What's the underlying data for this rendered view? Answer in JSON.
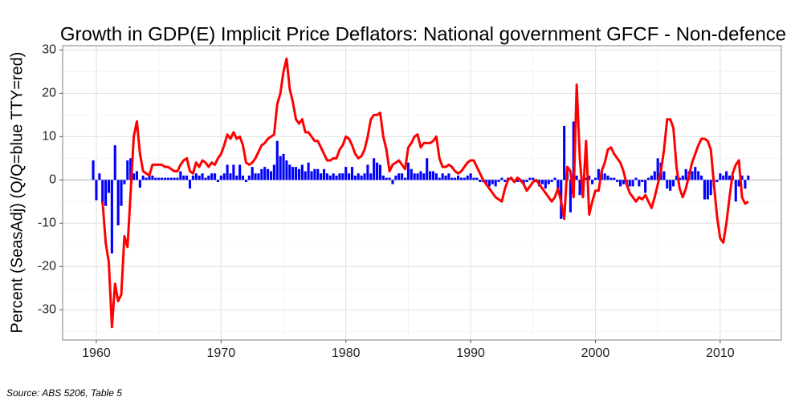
{
  "chart_data": {
    "type": "bar+line",
    "title": "Growth in GDP(E) Implicit Price Deflators: National government GFCF - Non-defence",
    "ylabel": "Percent (SeasAdj) (Q/Q=blue TTY=red)",
    "source": "Source: ABS 5206, Table 5",
    "xlim": [
      1957.3,
      2014.9
    ],
    "ylim": [
      -37,
      31
    ],
    "xticks": [
      1960,
      1970,
      1980,
      1990,
      2000,
      2010
    ],
    "yticks": [
      -30,
      -20,
      -10,
      0,
      10,
      20,
      30
    ],
    "xminorticks": [
      1965,
      1975,
      1985,
      1995,
      2005
    ],
    "yminorticks": [
      -35,
      -25,
      -15,
      -5,
      5,
      15,
      25
    ],
    "grid": true,
    "x": [
      1959.75,
      1960,
      1960.25,
      1960.5,
      1960.75,
      1961,
      1961.25,
      1961.5,
      1961.75,
      1962,
      1962.25,
      1962.5,
      1962.75,
      1963,
      1963.25,
      1963.5,
      1963.75,
      1964,
      1964.25,
      1964.5,
      1964.75,
      1965,
      1965.25,
      1965.5,
      1965.75,
      1966,
      1966.25,
      1966.5,
      1966.75,
      1967,
      1967.25,
      1967.5,
      1967.75,
      1968,
      1968.25,
      1968.5,
      1968.75,
      1969,
      1969.25,
      1969.5,
      1969.75,
      1970,
      1970.25,
      1970.5,
      1970.75,
      1971,
      1971.25,
      1971.5,
      1971.75,
      1972,
      1972.25,
      1972.5,
      1972.75,
      1973,
      1973.25,
      1973.5,
      1973.75,
      1974,
      1974.25,
      1974.5,
      1974.75,
      1975,
      1975.25,
      1975.5,
      1975.75,
      1976,
      1976.25,
      1976.5,
      1976.75,
      1977,
      1977.25,
      1977.5,
      1977.75,
      1978,
      1978.25,
      1978.5,
      1978.75,
      1979,
      1979.25,
      1979.5,
      1979.75,
      1980,
      1980.25,
      1980.5,
      1980.75,
      1981,
      1981.25,
      1981.5,
      1981.75,
      1982,
      1982.25,
      1982.5,
      1982.75,
      1983,
      1983.25,
      1983.5,
      1983.75,
      1984,
      1984.25,
      1984.5,
      1984.75,
      1985,
      1985.25,
      1985.5,
      1985.75,
      1986,
      1986.25,
      1986.5,
      1986.75,
      1987,
      1987.25,
      1987.5,
      1987.75,
      1988,
      1988.25,
      1988.5,
      1988.75,
      1989,
      1989.25,
      1989.5,
      1989.75,
      1990,
      1990.25,
      1990.5,
      1990.75,
      1991,
      1991.25,
      1991.5,
      1991.75,
      1992,
      1992.25,
      1992.5,
      1992.75,
      1993,
      1993.25,
      1993.5,
      1993.75,
      1994,
      1994.25,
      1994.5,
      1994.75,
      1995,
      1995.25,
      1995.5,
      1995.75,
      1996,
      1996.25,
      1996.5,
      1996.75,
      1997,
      1997.25,
      1997.5,
      1997.75,
      1998,
      1998.25,
      1998.5,
      1998.75,
      1999,
      1999.25,
      1999.5,
      1999.75,
      2000,
      2000.25,
      2000.5,
      2000.75,
      2001,
      2001.25,
      2001.5,
      2001.75,
      2002,
      2002.25,
      2002.5,
      2002.75,
      2003,
      2003.25,
      2003.5,
      2003.75,
      2004,
      2004.25,
      2004.5,
      2004.75,
      2005,
      2005.25,
      2005.5,
      2005.75,
      2006,
      2006.25,
      2006.5,
      2006.75,
      2007,
      2007.25,
      2007.5,
      2007.75,
      2008,
      2008.25,
      2008.5,
      2008.75,
      2009,
      2009.25,
      2009.5,
      2009.75,
      2010,
      2010.25,
      2010.5,
      2010.75,
      2011,
      2011.25,
      2011.5,
      2011.75,
      2012,
      2012.25
    ],
    "series": [
      {
        "type": "bar",
        "color": "#0000ff",
        "values": [
          4.5,
          -4.7,
          1.5,
          -5.5,
          -6,
          -3,
          -17,
          8,
          -10.5,
          -6,
          -1,
          4.5,
          5,
          1.5,
          2,
          -1.8,
          1,
          0.5,
          1,
          1,
          0.5,
          0.5,
          0.5,
          0.5,
          0.5,
          0.5,
          0.5,
          0.5,
          2,
          1,
          1,
          -2,
          1,
          1.5,
          1,
          1.5,
          0.5,
          1,
          1.5,
          1.5,
          -0.5,
          1,
          1.5,
          3.5,
          1.5,
          3.5,
          1,
          3.5,
          1,
          -0.5,
          1,
          3,
          1.5,
          1.5,
          2.5,
          3,
          2.5,
          2,
          3.5,
          9,
          5.5,
          6,
          4.5,
          3.5,
          3,
          3,
          2.5,
          3.5,
          2,
          4,
          2,
          2.5,
          2.5,
          1.5,
          2.5,
          1.5,
          1,
          1.5,
          1,
          1.5,
          1.5,
          3,
          1.5,
          3,
          1,
          1.5,
          1,
          1.5,
          3.5,
          1.5,
          5,
          4,
          3.5,
          1,
          0.5,
          0.5,
          -1,
          1,
          1.5,
          1.5,
          0.5,
          4,
          2.5,
          1.5,
          1.5,
          2,
          1.5,
          5,
          2,
          2,
          1.5,
          0.5,
          1.5,
          1,
          1.5,
          0.5,
          0.5,
          1,
          0.5,
          0.5,
          1,
          1.5,
          0.5,
          0.5,
          -0.5,
          -0.5,
          -1,
          -1.5,
          -1,
          -1.5,
          -0.5,
          0.5,
          -0.5,
          0.5,
          0.5,
          -0.5,
          -0.5,
          -0.5,
          -1,
          -0.5,
          0.5,
          0.5,
          -0.5,
          -1.5,
          -1,
          -2,
          -1,
          -0.5,
          0.5,
          -3,
          -9,
          12.5,
          2,
          -7.5,
          13.5,
          1,
          -3.5,
          -4,
          0.5,
          1,
          -1,
          0.5,
          2.5,
          2,
          1.5,
          1,
          0.5,
          0.5,
          -0.5,
          -1.5,
          -1,
          -1,
          -1.5,
          -1.5,
          0.5,
          -1.5,
          -0.5,
          -3,
          0.5,
          1,
          2,
          5,
          4,
          2,
          -2,
          -2.5,
          -1.5,
          1,
          0.5,
          1,
          2.5,
          2,
          2,
          3,
          2,
          1,
          -4.5,
          -4.5,
          -3.5,
          -1.5,
          -0.5,
          1.5,
          1,
          2,
          1,
          1,
          -5,
          -1.5,
          1,
          -2,
          1
        ]
      },
      {
        "type": "line",
        "color": "#ff0000",
        "values": [
          null,
          null,
          null,
          -5,
          -14.5,
          -19,
          -34,
          -24,
          -28,
          -26.5,
          -13,
          -15.5,
          -3,
          10,
          13.5,
          6,
          2,
          1.5,
          1,
          3.5,
          3.5,
          3.5,
          3.5,
          3,
          3,
          2.5,
          2,
          2,
          3.5,
          4.5,
          5,
          2,
          1.5,
          4,
          3,
          4.5,
          4,
          3,
          4,
          3.5,
          5,
          6,
          8,
          10.5,
          9.5,
          11,
          9.5,
          10,
          8,
          4,
          3.5,
          4,
          5,
          6.5,
          8,
          8.5,
          9.5,
          10,
          10.5,
          17.5,
          20,
          25,
          28,
          21,
          18,
          14,
          13,
          14,
          11,
          11,
          10,
          9,
          9,
          7.5,
          6,
          4.5,
          4.5,
          5,
          5,
          7,
          8,
          10,
          9.5,
          8,
          6,
          5,
          5.5,
          7,
          10,
          14,
          15,
          15,
          15.5,
          10,
          7,
          2,
          3.5,
          4,
          4.5,
          3.5,
          2.5,
          7.5,
          8.5,
          10,
          10.5,
          7.5,
          8.5,
          8.5,
          8.5,
          9,
          10,
          5,
          3,
          3,
          3.5,
          3,
          2,
          1.5,
          2,
          3,
          4,
          4.5,
          4.5,
          3,
          1.5,
          0,
          -1,
          -2,
          -3,
          -4,
          -4.5,
          -5,
          -2,
          0,
          0.5,
          -0.5,
          0.5,
          0,
          -1,
          -2.5,
          -1.5,
          -0.5,
          0,
          -1,
          -2,
          -3,
          -4,
          -5,
          -4,
          -2,
          -5,
          -9,
          3,
          2,
          -4,
          22,
          5,
          -4,
          9,
          -8,
          -5,
          -2.5,
          -2.5,
          2,
          4,
          7,
          7.5,
          6,
          5,
          4,
          2,
          -1,
          -3,
          -4,
          -5,
          -4,
          -4.5,
          -3.5,
          -5,
          -6.5,
          -4,
          -1,
          2,
          7,
          14,
          14,
          12,
          3,
          -2,
          -4,
          -2,
          1,
          4,
          6,
          8,
          9.5,
          9.5,
          9,
          7,
          -1,
          -8.5,
          -13.5,
          -14.5,
          -10,
          -4,
          1.5,
          3.5,
          4.5,
          -4,
          -5.5,
          -5
        ]
      }
    ]
  }
}
